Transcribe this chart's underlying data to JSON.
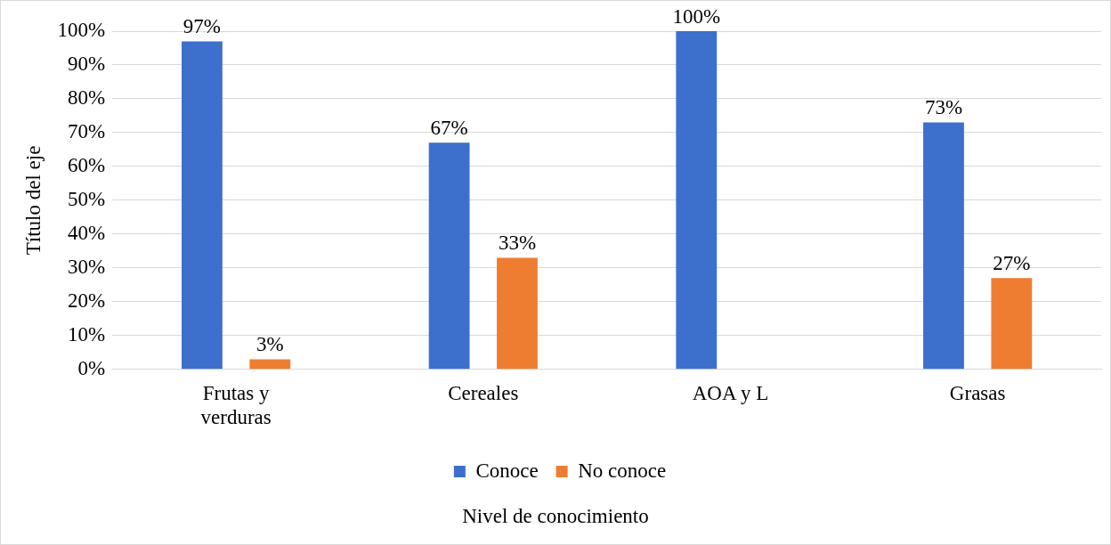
{
  "chart_data": {
    "type": "bar",
    "ylabel": "Título del eje",
    "xlabel": "Nivel de conocimiento",
    "categories": [
      "Frutas y verduras",
      "Cereales",
      "AOA y L",
      "Grasas"
    ],
    "series": [
      {
        "name": "Conoce",
        "color": "#3d6fcc",
        "values": [
          97,
          67,
          100,
          73
        ],
        "value_labels": [
          "97%",
          "67%",
          "100%",
          "73%"
        ]
      },
      {
        "name": "No conoce",
        "color": "#ee7d31",
        "values": [
          3,
          33,
          null,
          27
        ],
        "value_labels": [
          "3%",
          "33%",
          null,
          "27%"
        ]
      }
    ],
    "ylim": [
      0,
      100
    ],
    "yticks": [
      {
        "value": 0,
        "label": "0%"
      },
      {
        "value": 10,
        "label": "10%"
      },
      {
        "value": 20,
        "label": "20%"
      },
      {
        "value": 30,
        "label": "30%"
      },
      {
        "value": 40,
        "label": "40%"
      },
      {
        "value": 50,
        "label": "50%"
      },
      {
        "value": 60,
        "label": "60%"
      },
      {
        "value": 70,
        "label": "70%"
      },
      {
        "value": 80,
        "label": "80%"
      },
      {
        "value": 90,
        "label": "90%"
      },
      {
        "value": 100,
        "label": "100%"
      }
    ],
    "grid": "y",
    "legend": "bottom"
  }
}
